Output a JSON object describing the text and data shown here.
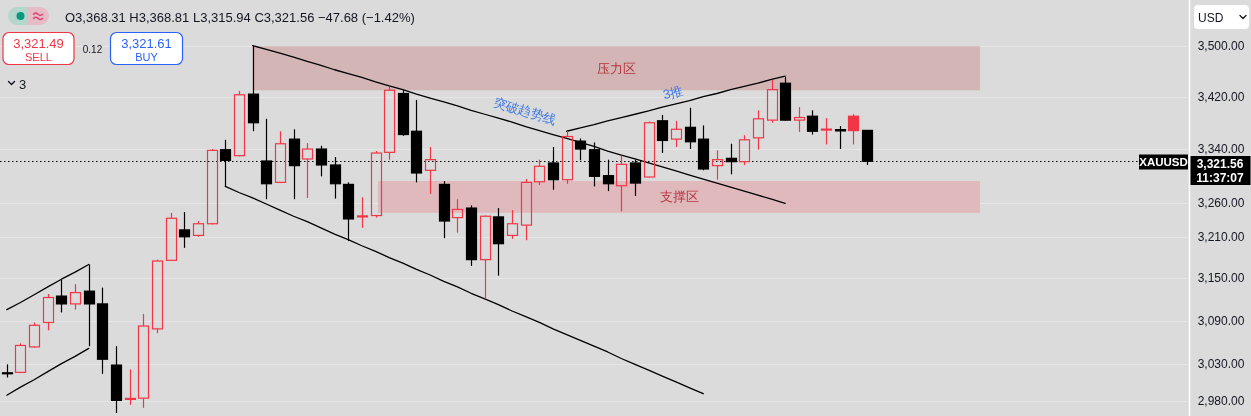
{
  "chart_data": {
    "type": "candlestick",
    "categories": [
      null,
      null,
      null,
      null,
      null,
      null,
      null,
      null,
      null,
      null,
      null,
      null,
      null,
      null,
      null,
      null,
      null,
      null,
      null,
      null,
      null,
      null,
      null,
      null,
      null,
      null,
      null,
      null,
      null,
      null,
      null,
      null,
      null,
      null,
      null,
      null,
      null,
      null,
      null,
      null,
      null,
      null,
      null,
      null,
      null,
      null,
      null,
      null,
      null,
      null,
      null,
      null,
      null,
      null,
      null,
      null,
      null,
      null,
      null,
      null,
      null,
      null,
      null,
      null,
      null,
      null,
      null,
      null,
      null,
      null,
      null,
      null,
      null,
      null,
      null,
      null,
      null,
      null,
      null,
      null,
      null,
      null,
      null,
      null,
      null,
      null,
      null
    ],
    "ohlc": [
      [
        3018,
        3030,
        3012,
        3017.5
      ],
      [
        3019,
        3059,
        3018,
        3056
      ],
      [
        3054,
        3088,
        3053,
        3084
      ],
      [
        3088,
        3128,
        3077,
        3123
      ],
      [
        3125,
        3148,
        3102,
        3114
      ],
      [
        3114,
        3142,
        3106,
        3130
      ],
      [
        3132,
        3170,
        3055,
        3114
      ],
      [
        3114,
        3137,
        3017,
        3037
      ],
      [
        3029,
        3055,
        2964,
        2981
      ],
      [
        2982.5,
        3023,
        2975,
        2983.5
      ],
      [
        2984,
        3100,
        2971,
        3083
      ],
      [
        3079,
        3177,
        3073,
        3175
      ],
      [
        3176,
        3245,
        3175,
        3237
      ],
      [
        3220,
        3246,
        3194,
        3210
      ],
      [
        3212,
        3233,
        3210,
        3229
      ],
      [
        3229,
        3340,
        3228,
        3338
      ],
      [
        3339,
        3354,
        3283,
        3323
      ],
      [
        3330,
        3429,
        3329,
        3423
      ],
      [
        3424,
        3500,
        3367,
        3380
      ],
      [
        3322,
        3386,
        3265,
        3288
      ],
      [
        3290,
        3367,
        3289,
        3348
      ],
      [
        3355,
        3370,
        3265,
        3315
      ],
      [
        3325,
        3349,
        3267,
        3340
      ],
      [
        3340,
        3345,
        3299,
        3316
      ],
      [
        3316,
        3328,
        3266,
        3288
      ],
      [
        3287,
        3290,
        3204,
        3236
      ],
      [
        3239,
        3268,
        3223,
        3240.5
      ],
      [
        3241,
        3337,
        3238,
        3334
      ],
      [
        3335,
        3435,
        3324,
        3430
      ],
      [
        3425,
        3430,
        3360,
        3362
      ],
      [
        3367,
        3415,
        3290,
        3304
      ],
      [
        3308,
        3343,
        3273,
        3324
      ],
      [
        3287,
        3292,
        3208,
        3233
      ],
      [
        3238,
        3265,
        3216,
        3250
      ],
      [
        3252,
        3256,
        3168,
        3177
      ],
      [
        3177,
        3241,
        3121,
        3240
      ],
      [
        3239,
        3252,
        3154,
        3200
      ],
      [
        3212,
        3249,
        3207,
        3229
      ],
      [
        3227,
        3295,
        3205,
        3290
      ],
      [
        3291,
        3324,
        3286,
        3314
      ],
      [
        3319,
        3343,
        3279,
        3294
      ],
      [
        3294,
        3367,
        3288,
        3359
      ],
      [
        3352,
        3356,
        3323,
        3340
      ],
      [
        3339,
        3350,
        3284,
        3299
      ],
      [
        3300,
        3324,
        3277,
        3288
      ],
      [
        3285,
        3330,
        3247,
        3317
      ],
      [
        3319,
        3324,
        3270,
        3289
      ],
      [
        3298,
        3382,
        3297,
        3380
      ],
      [
        3383,
        3392,
        3334,
        3353
      ],
      [
        3355,
        3383,
        3343,
        3370
      ],
      [
        3373,
        3403,
        3340,
        3351
      ],
      [
        3355,
        3376,
        3308,
        3310
      ],
      [
        3315,
        3338,
        3294,
        3324
      ],
      [
        3326,
        3348,
        3302,
        3321
      ],
      [
        3321,
        3361,
        3316,
        3354
      ],
      [
        3357,
        3399,
        3339,
        3386
      ],
      [
        3384,
        3446,
        3380,
        3431
      ],
      [
        3441,
        3451,
        3383,
        3384
      ],
      [
        3384,
        3404,
        3366,
        3388
      ],
      [
        3390,
        3399,
        3362,
        3367
      ],
      [
        3369,
        3387,
        3347,
        3370
      ],
      [
        3369.5,
        3375,
        3340,
        3367.5
      ],
      [
        3390,
        3393,
        3347,
        3368
      ],
      [
        3368.31,
        3368.81,
        3315.94,
        3321.56
      ],
      null,
      null,
      null,
      null,
      null,
      null,
      null,
      null,
      null,
      null,
      null,
      null,
      null,
      null,
      null,
      null,
      null,
      null,
      null,
      null,
      null,
      null,
      null
    ],
    "colors": [
      "#000000",
      "#f23645",
      "#f23645",
      "#f23645",
      "#000000",
      "#f23645",
      "#000000",
      "#000000",
      "#000000",
      "#f23645",
      "#f23645",
      "#f23645",
      "#f23645",
      "#000000",
      "#f23645",
      "#f23645",
      "#000000",
      "#f23645",
      "#000000",
      "#000000",
      "#f23645",
      "#000000",
      "#f23645",
      "#000000",
      "#000000",
      "#000000",
      "#f23645",
      "#f23645",
      "#f23645",
      "#000000",
      "#000000",
      "#f23645",
      "#000000",
      "#f23645",
      "#000000",
      "#f23645",
      "#000000",
      "#f23645",
      "#f23645",
      "#f23645",
      "#000000",
      "#f23645",
      "#000000",
      "#000000",
      "#000000",
      "#f23645",
      "#000000",
      "#f23645",
      "#000000",
      "#f23645",
      "#000000",
      "#000000",
      "#f23645",
      "#000000",
      "#f23645",
      "#f23645",
      "#f23645",
      "#000000",
      "#f23645",
      "#000000",
      "#f23645",
      "#000000",
      "#f23645",
      "#000000",
      null,
      null,
      null,
      null,
      null,
      null,
      null,
      null,
      null,
      null,
      null,
      null,
      null,
      null,
      null,
      null,
      null,
      null,
      null,
      null,
      null,
      null,
      null
    ],
    "series": [
      {
        "type": "line",
        "color": "#000000",
        "values": [
          3106,
          3116,
          3127,
          3138,
          3149,
          3159,
          3170,
          null,
          null,
          null,
          null,
          null,
          null,
          null,
          null,
          null,
          null,
          null,
          null,
          null,
          null,
          null,
          null,
          null,
          null,
          null,
          null,
          null,
          null,
          null,
          null,
          null,
          null,
          null,
          null,
          null,
          null,
          null,
          null,
          null,
          null,
          null,
          null,
          null,
          null,
          null,
          null,
          null,
          null,
          null,
          null,
          null,
          null,
          null,
          null,
          null,
          null,
          null,
          null,
          null,
          null,
          null,
          null,
          null,
          null,
          null,
          null,
          null,
          null,
          null,
          null,
          null,
          null,
          null,
          null,
          null,
          null,
          null,
          null,
          null,
          null,
          null,
          null,
          null,
          null,
          null,
          null
        ]
      },
      {
        "type": "line",
        "color": "#000000",
        "values": [
          2988,
          2999,
          3009,
          3020,
          3031,
          3041,
          3052,
          null,
          null,
          null,
          null,
          null,
          null,
          null,
          null,
          null,
          null,
          null,
          null,
          null,
          null,
          null,
          null,
          null,
          null,
          null,
          null,
          null,
          null,
          null,
          null,
          null,
          null,
          null,
          null,
          null,
          null,
          null,
          null,
          null,
          null,
          null,
          null,
          null,
          null,
          null,
          null,
          null,
          null,
          null,
          null,
          null,
          null,
          null,
          null,
          null,
          null,
          null,
          null,
          null,
          null,
          null,
          null,
          null,
          null,
          null,
          null,
          null,
          null,
          null,
          null,
          null,
          null,
          null,
          null,
          null,
          null,
          null,
          null,
          null,
          null,
          null,
          null,
          null,
          null,
          null,
          null
        ]
      },
      {
        "type": "line",
        "color": "#000000",
        "values": [
          null,
          null,
          null,
          null,
          null,
          null,
          null,
          null,
          null,
          null,
          null,
          null,
          null,
          null,
          null,
          null,
          null,
          null,
          3500,
          3494,
          3488,
          3482,
          3475,
          3469,
          3462,
          3456,
          3450,
          3443,
          3437,
          3431,
          3424,
          3418,
          3412,
          3406,
          3399,
          3393,
          3387,
          3381,
          3374,
          3368,
          3362,
          3356,
          3350,
          3344,
          3337,
          3331,
          3325,
          3319,
          3313,
          3307,
          3301,
          3295,
          3289,
          3283,
          3277,
          3271,
          3265,
          3259,
          null,
          null,
          null,
          null,
          null,
          null,
          null,
          null,
          null,
          null,
          null,
          null,
          null,
          null,
          null,
          null,
          null,
          null,
          null,
          null,
          null,
          null,
          null,
          null,
          null,
          null,
          null,
          null,
          null
        ]
      },
      {
        "type": "line",
        "color": "#000000",
        "values": [
          null,
          null,
          null,
          null,
          null,
          null,
          null,
          null,
          null,
          null,
          null,
          null,
          null,
          null,
          null,
          null,
          3284,
          3275,
          3267,
          3258,
          3249,
          3240,
          3232,
          3223,
          3214,
          3206,
          3197,
          3189,
          3180,
          3172,
          3163,
          3155,
          3146,
          3138,
          3129,
          3121,
          3113,
          3104,
          3096,
          3088,
          3079,
          3071,
          3063,
          3055,
          3047,
          3038,
          3030,
          3022,
          3014,
          3006,
          2998,
          2990,
          null,
          null,
          null,
          null,
          null,
          null,
          null,
          null,
          null,
          null,
          null,
          null,
          null,
          null,
          null,
          null,
          null,
          null,
          null,
          null,
          null,
          null,
          null,
          null,
          null,
          null,
          null,
          null,
          null,
          null,
          null,
          null,
          null,
          null,
          null
        ]
      },
      {
        "type": "line",
        "color": "#000000",
        "values": [
          null,
          null,
          null,
          null,
          null,
          null,
          null,
          null,
          null,
          null,
          null,
          null,
          null,
          null,
          null,
          null,
          null,
          null,
          null,
          null,
          null,
          null,
          null,
          null,
          null,
          null,
          null,
          null,
          null,
          null,
          null,
          null,
          null,
          null,
          null,
          null,
          null,
          null,
          null,
          null,
          null,
          3367,
          3372,
          3377,
          3383,
          3388,
          3393,
          3398,
          3404,
          3409,
          3414,
          3420,
          3425,
          3431,
          3436,
          3441,
          3447,
          3452,
          null,
          null,
          null,
          null,
          null,
          null,
          null,
          null,
          null,
          null,
          null,
          null,
          null,
          null,
          null,
          null,
          null,
          null,
          null,
          null,
          null,
          null,
          null,
          null,
          null,
          null,
          null,
          null,
          null
        ]
      }
    ],
    "ylim": [
      2960,
      3573
    ],
    "log": true,
    "grid": "y",
    "tick_labels": "y",
    "yticks": [
      {
        "value": 2980,
        "label": "2,980.00"
      },
      {
        "value": 3030,
        "label": "3,030.00"
      },
      {
        "value": 3090,
        "label": "3,090.00"
      },
      {
        "value": 3150,
        "label": "3,150.00"
      },
      {
        "value": 3210,
        "label": "3,210.00"
      },
      {
        "value": 3260,
        "label": "3,260.00"
      },
      {
        "value": 3340,
        "label": "3,340.00"
      },
      {
        "value": 3420,
        "label": "3,420.00"
      },
      {
        "value": 3500,
        "label": "3,500.00"
      }
    ],
    "bands": [
      {
        "axis": "y",
        "from": 3430,
        "to": 3499,
        "label": "压力区",
        "color": "#d4b5b6"
      },
      {
        "axis": "y",
        "from": 3245,
        "to": 3292,
        "label": "支撑区",
        "color": "#e0b9bd"
      }
    ],
    "ref_lines": [
      {
        "axis": "y",
        "value": 3321.56,
        "label": "XAUUSD",
        "color": "#000000",
        "line_style": "dotted"
      }
    ],
    "annotations": [
      "O3,368.31 H3,368.81 L3,315.94 C3,321.56 −47.68 (−1.42%)",
      "3,321.49",
      "SELL",
      "0.12",
      "3,321.61",
      "BUY",
      "3",
      "USD",
      "3,321.56",
      "11:37:07",
      "突破趋势线",
      "3推"
    ]
  }
}
